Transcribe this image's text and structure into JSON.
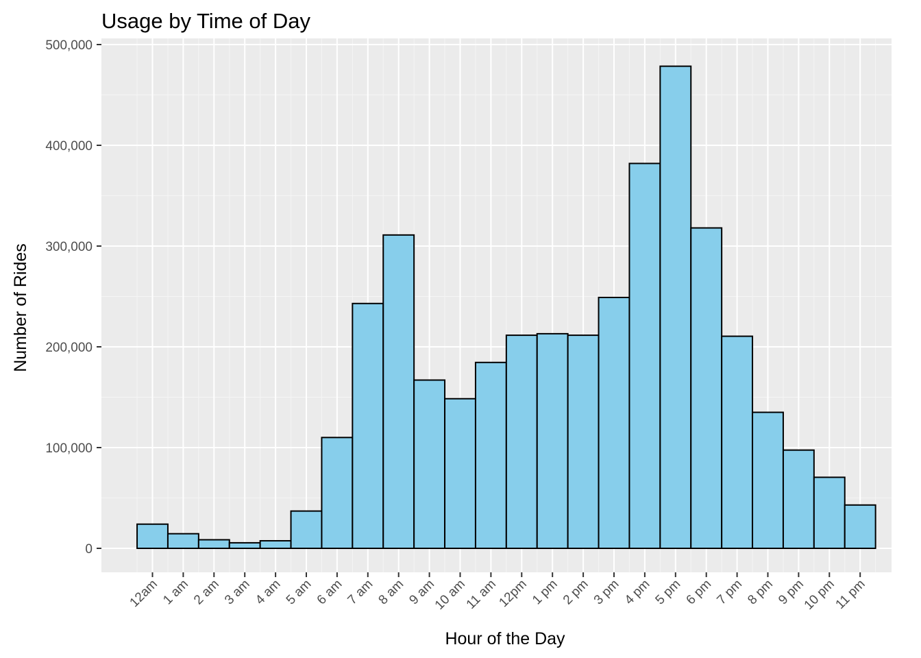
{
  "chart_data": {
    "type": "bar",
    "title": "Usage by Time of Day",
    "xlabel": "Hour of the Day",
    "ylabel": "Number of Rides",
    "categories": [
      "12am",
      "1 am",
      "2 am",
      "3 am",
      "4 am",
      "5 am",
      "6 am",
      "7 am",
      "8 am",
      "9 am",
      "10 am",
      "11 am",
      "12pm",
      "1 pm",
      "2 pm",
      "3 pm",
      "4 pm",
      "5 pm",
      "6 pm",
      "7 pm",
      "8 pm",
      "9 pm",
      "10 pm",
      "11 pm"
    ],
    "values": [
      24000,
      14500,
      8500,
      5500,
      7500,
      37000,
      110000,
      243000,
      311000,
      167000,
      148500,
      184500,
      211500,
      213000,
      211500,
      249000,
      382000,
      478500,
      318000,
      210500,
      135000,
      97500,
      70500,
      43000
    ],
    "ylim": [
      0,
      500000
    ],
    "yticks": [
      0,
      100000,
      200000,
      300000,
      400000,
      500000
    ],
    "ytick_labels": [
      "0",
      "100,000",
      "200,000",
      "300,000",
      "400,000",
      "500,000"
    ],
    "grid": true,
    "colors": {
      "bar_fill": "#87ceeb",
      "bar_stroke": "#000000",
      "panel_background": "#ebebeb",
      "grid": "#ffffff"
    }
  }
}
